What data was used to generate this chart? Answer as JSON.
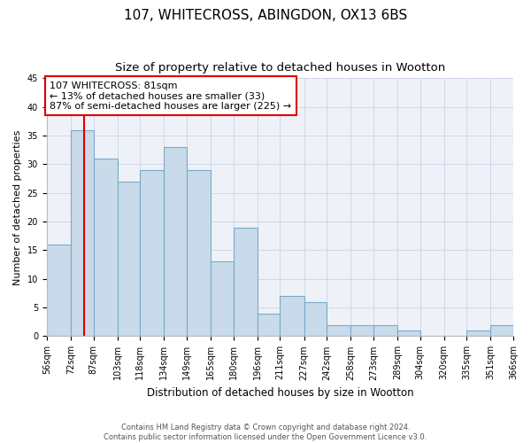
{
  "title": "107, WHITECROSS, ABINGDON, OX13 6BS",
  "subtitle": "Size of property relative to detached houses in Wootton",
  "xlabel": "Distribution of detached houses by size in Wootton",
  "ylabel": "Number of detached properties",
  "bin_edges": [
    56,
    72,
    87,
    103,
    118,
    134,
    149,
    165,
    180,
    196,
    211,
    227,
    242,
    258,
    273,
    289,
    304,
    320,
    335,
    351,
    366
  ],
  "bar_heights": [
    16,
    36,
    31,
    27,
    29,
    33,
    29,
    13,
    19,
    4,
    7,
    6,
    2,
    2,
    2,
    1,
    0,
    0,
    1,
    2
  ],
  "bar_color": "#c9daea",
  "bar_edge_color": "#7aaac8",
  "vline_x": 81,
  "vline_color": "#dd0000",
  "annotation_text": "107 WHITECROSS: 81sqm\n← 13% of detached houses are smaller (33)\n87% of semi-detached houses are larger (225) →",
  "annotation_box_facecolor": "#ffffff",
  "annotation_box_edgecolor": "#dd0000",
  "ylim": [
    0,
    45
  ],
  "yticks": [
    0,
    5,
    10,
    15,
    20,
    25,
    30,
    35,
    40,
    45
  ],
  "grid_color": "#c8d4e4",
  "background_color": "#eef2f8",
  "fig_background": "#ffffff",
  "footer": "Contains HM Land Registry data © Crown copyright and database right 2024.\nContains public sector information licensed under the Open Government Licence v3.0.",
  "title_fontsize": 11,
  "subtitle_fontsize": 9.5,
  "xlabel_fontsize": 8.5,
  "ylabel_fontsize": 8,
  "tick_label_fontsize": 7,
  "annotation_fontsize": 8,
  "footer_fontsize": 6
}
